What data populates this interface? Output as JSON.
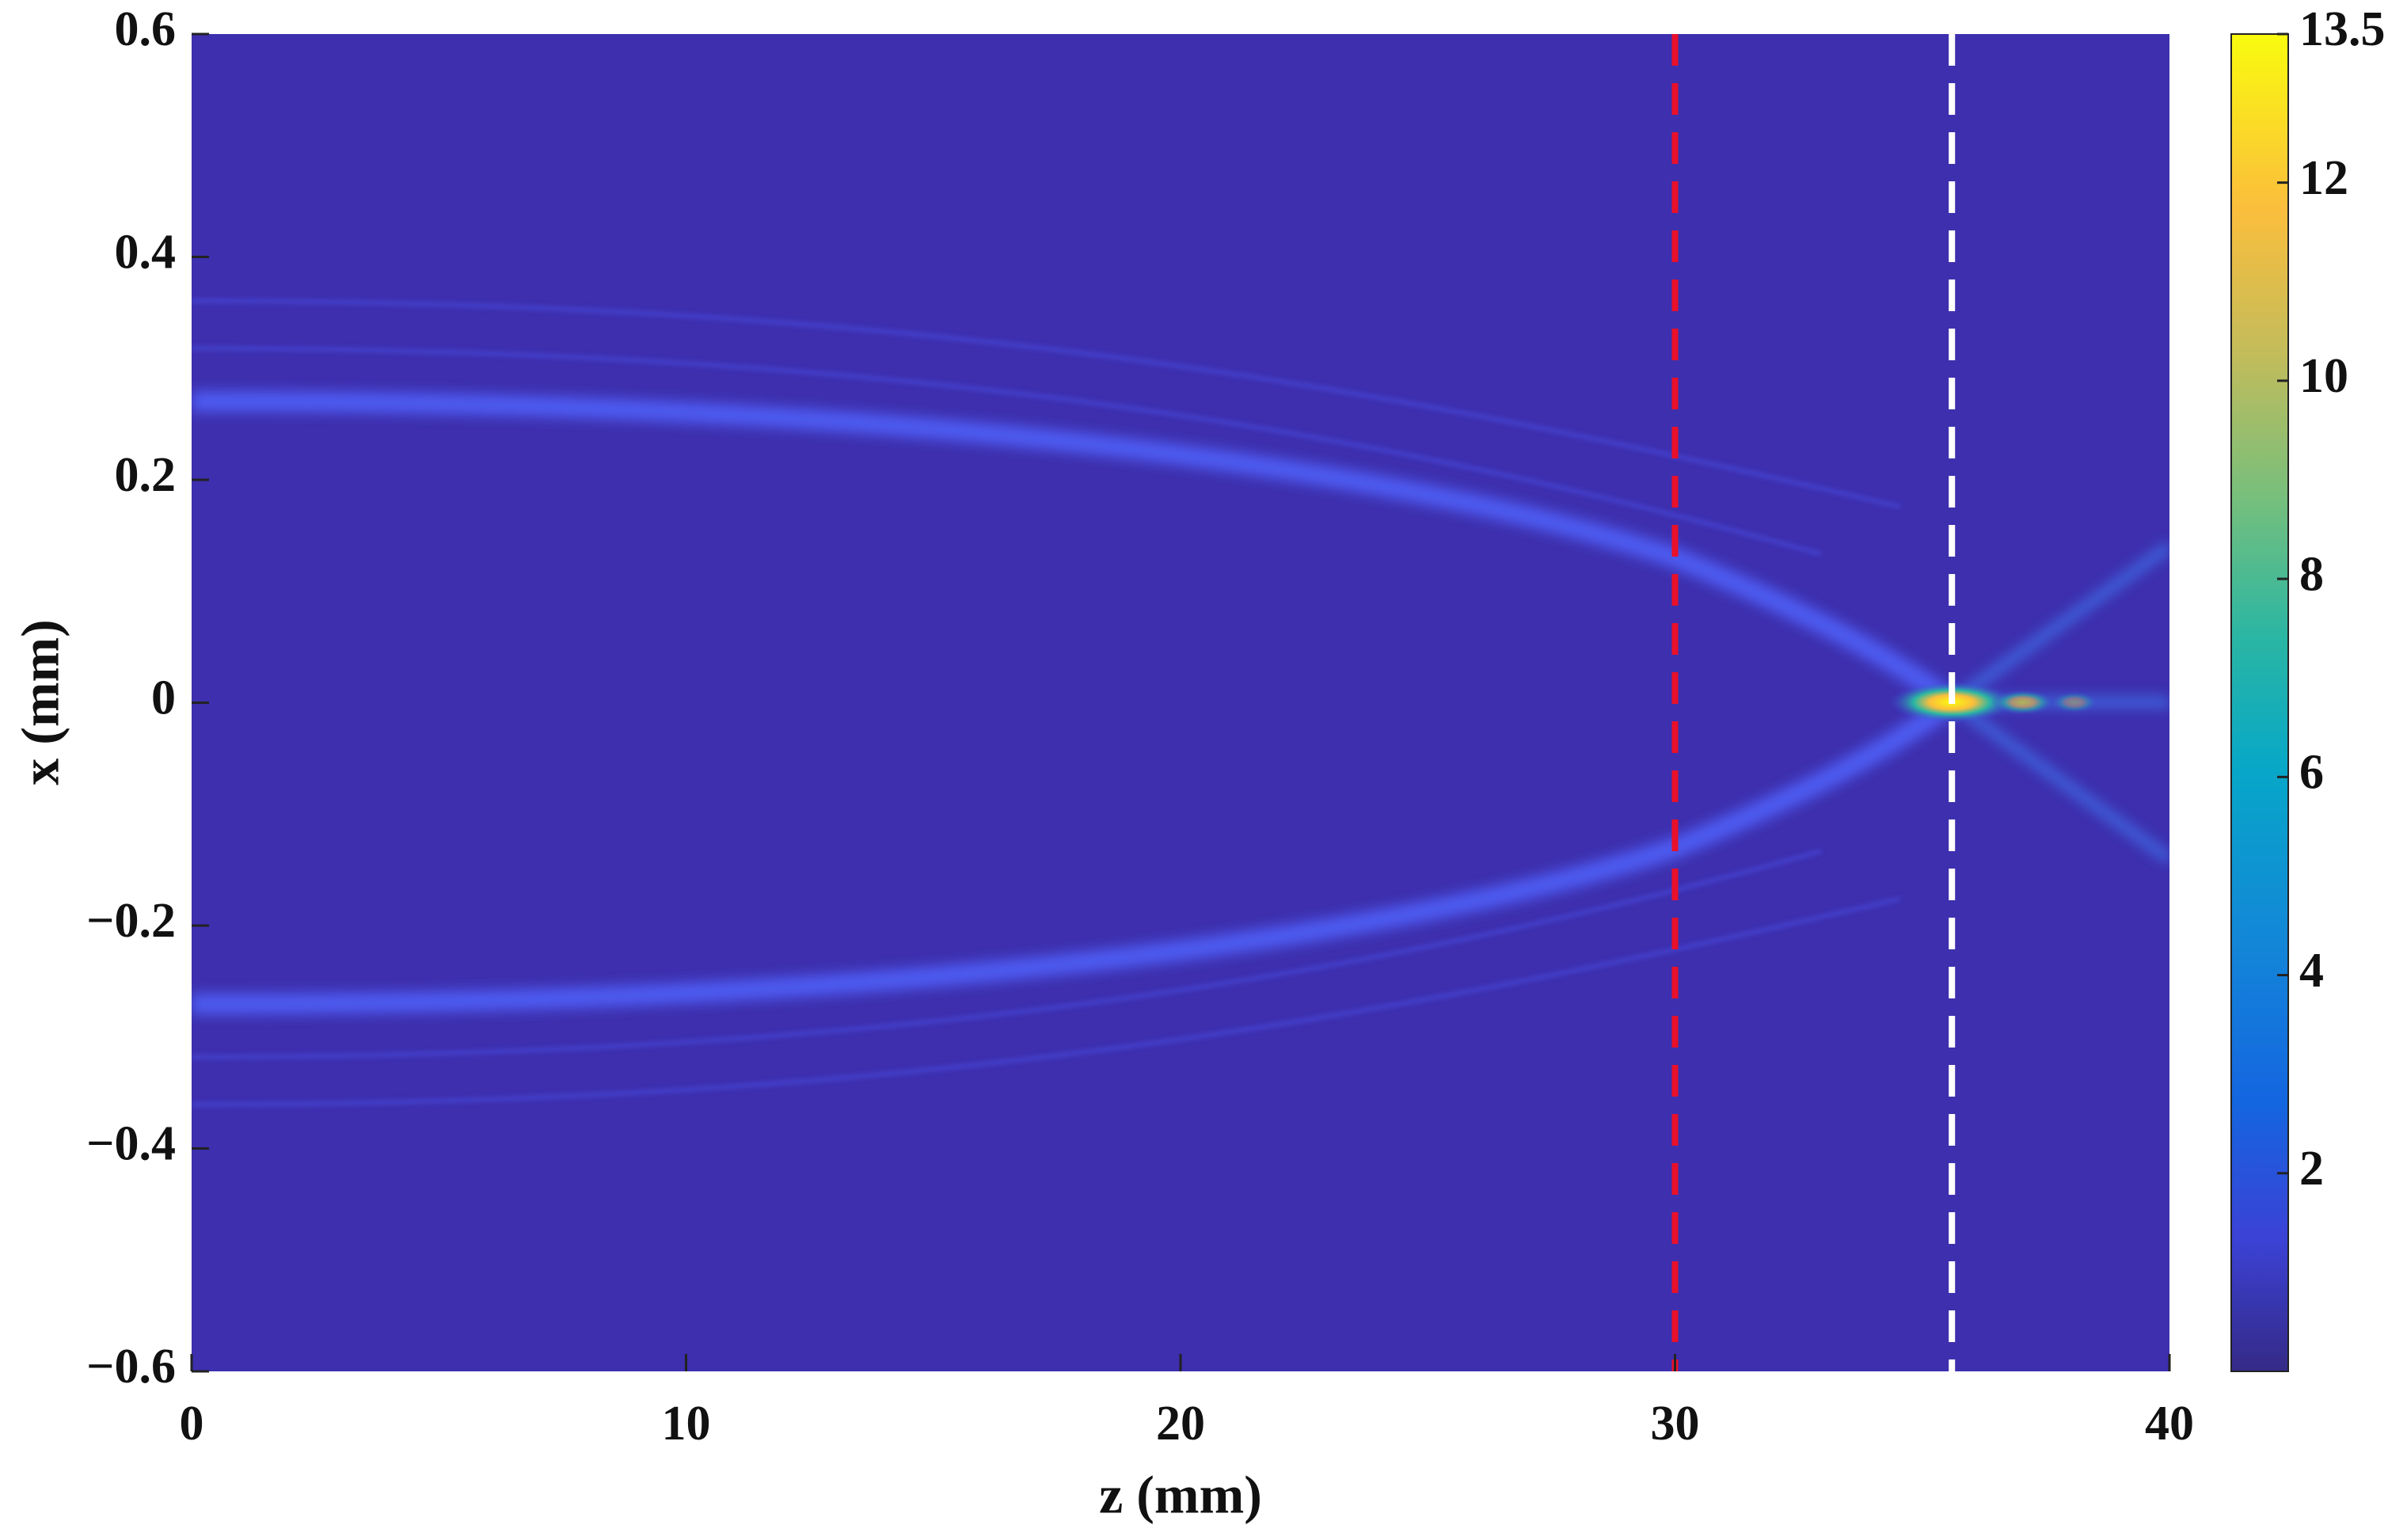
{
  "chart_data": {
    "type": "heatmap",
    "xlabel": "z (mm)",
    "ylabel": "x (mm)",
    "xlim": [
      0,
      40
    ],
    "xticks": [
      0,
      10,
      20,
      30,
      40
    ],
    "ylim": [
      -0.6,
      0.6
    ],
    "yticks": [
      {
        "value": -0.6,
        "label": "−0.6"
      },
      {
        "value": -0.4,
        "label": "−0.4"
      },
      {
        "value": -0.2,
        "label": "−0.2"
      },
      0,
      0.2,
      0.4,
      0.6
    ],
    "clim": [
      0,
      13.5
    ],
    "cticks": [
      2,
      4,
      6,
      8,
      10,
      12,
      13.5
    ],
    "colormap": "parula",
    "reference_lines": [
      {
        "x": 30,
        "color": "#e8102a"
      },
      {
        "x": 35.6,
        "color": "#ffffff"
      }
    ]
  }
}
